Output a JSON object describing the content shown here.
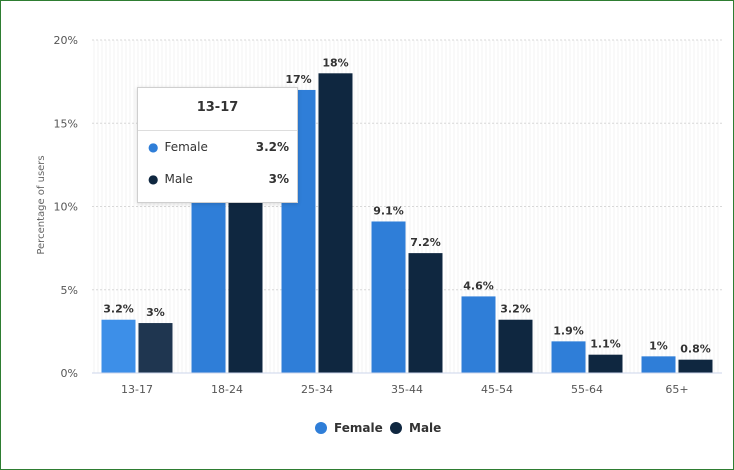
{
  "chart_data": {
    "type": "bar",
    "categories": [
      "13-17",
      "18-24",
      "25-34",
      "35-44",
      "45-54",
      "55-64",
      "65+"
    ],
    "series": [
      {
        "name": "Female",
        "color": "#2f7ed8",
        "values": [
          3.2,
          null,
          17,
          9.1,
          4.6,
          1.9,
          1
        ],
        "labels": [
          "3.2%",
          "",
          "17%",
          "9.1%",
          "4.6%",
          "1.9%",
          "1%"
        ]
      },
      {
        "name": "Male",
        "color": "#0f2740",
        "values": [
          3,
          null,
          18,
          7.2,
          3.2,
          1.1,
          0.8
        ],
        "labels": [
          "3%",
          "",
          "18%",
          "7.2%",
          "3.2%",
          "1.1%",
          "0.8%"
        ]
      }
    ],
    "ylabel": "Percentage of users",
    "ylim": [
      0,
      20
    ],
    "yticks": [
      0,
      5,
      10,
      15,
      20
    ],
    "ytick_labels": [
      "0%",
      "5%",
      "10%",
      "15%",
      "20%"
    ],
    "xtick_labels": [
      "13-17",
      "18-24",
      "25-34",
      "35-44",
      "45-54",
      "55-64",
      "65+"
    ],
    "grid": true,
    "legend_position": "bottom-center",
    "highlight_category_index": 0,
    "highlight_colors": {
      "Female": "#3d8fe8",
      "Male": "#1f3650"
    }
  },
  "tooltip": {
    "title": "13-17",
    "rows": [
      {
        "name": "Female",
        "value": "3.2%",
        "dot_color": "#2f7ed8"
      },
      {
        "name": "Male",
        "value": "3%",
        "dot_color": "#0f2740"
      }
    ]
  },
  "legend": [
    {
      "label": "Female",
      "color": "#2f7ed8"
    },
    {
      "label": "Male",
      "color": "#0f2740"
    }
  ]
}
